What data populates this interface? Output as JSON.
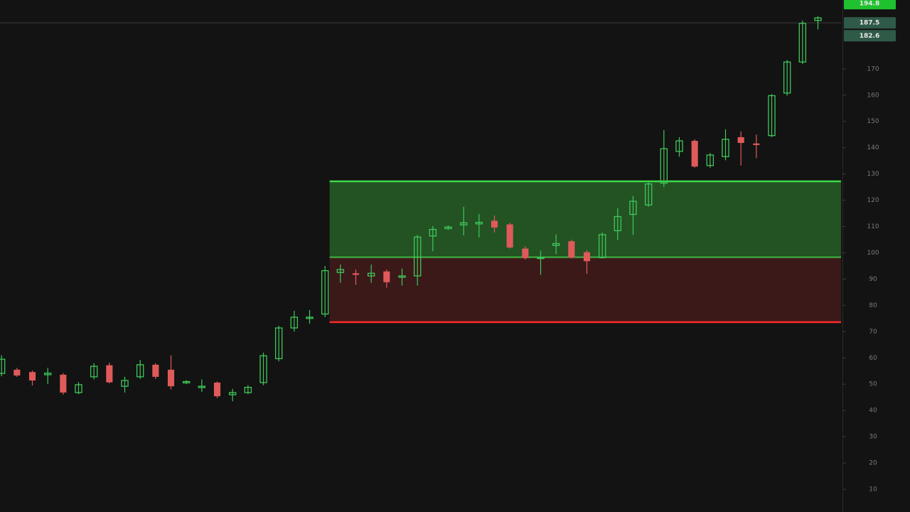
{
  "chart_data": {
    "type": "candlestick",
    "x": [
      0,
      1,
      2,
      3,
      4,
      5,
      6,
      7,
      8,
      9,
      10,
      11,
      12,
      13,
      14,
      15,
      16,
      17,
      18,
      19,
      20,
      21,
      22,
      23,
      24,
      25,
      26,
      27,
      28,
      29,
      30,
      31,
      32,
      33,
      34,
      35,
      36,
      37,
      38,
      39,
      40,
      41,
      42,
      43,
      44,
      45,
      46,
      47,
      48,
      49,
      50,
      51,
      52,
      53
    ],
    "open": [
      54.1,
      55.5,
      54.6,
      53.6,
      53.6,
      46.8,
      52.8,
      57.2,
      49.2,
      52.8,
      57.4,
      55.5,
      50.5,
      48.7,
      50.6,
      46,
      46.8,
      50.6,
      59.7,
      71.4,
      75,
      76.7,
      92.5,
      92.2,
      91.2,
      92.9,
      90.7,
      91.2,
      106.4,
      109.2,
      110.6,
      111,
      112.2,
      110.8,
      101.6,
      97.8,
      102.8,
      104.4,
      100.2,
      98.2,
      108.4,
      114.6,
      118.2,
      126.5,
      138.6,
      142.6,
      133.2,
      136.6,
      144,
      141.6,
      144.6,
      160.8,
      172.6,
      188.4
    ],
    "high": [
      61,
      56.2,
      55.2,
      56.2,
      54.2,
      50.8,
      58,
      58.2,
      52.8,
      59.2,
      58,
      61,
      51.5,
      51.8,
      51,
      48.2,
      49.6,
      62,
      72.2,
      77.9,
      78.2,
      95,
      95.5,
      93.6,
      95.5,
      93.6,
      94,
      106.8,
      110.2,
      110.4,
      117.5,
      114.8,
      114.2,
      111.4,
      102.5,
      100.8,
      107,
      105,
      101,
      107.7,
      117,
      121.6,
      127.5,
      146.7,
      144,
      143.2,
      138,
      147,
      146.2,
      145,
      160.4,
      173.4,
      188.4,
      190
    ],
    "low": [
      53,
      52.8,
      49.5,
      50.1,
      46,
      46.2,
      51.8,
      50.3,
      46.8,
      52,
      52,
      48,
      50,
      47,
      44.7,
      43.5,
      46.2,
      49.6,
      58.7,
      70,
      73,
      75.5,
      88.6,
      87.8,
      88.6,
      86.7,
      87.5,
      87.5,
      100.6,
      108.8,
      106.6,
      105.8,
      107.7,
      101.6,
      97.4,
      91.6,
      99.5,
      97.8,
      92,
      97.8,
      104.8,
      106.8,
      117.5,
      125,
      136.6,
      132.4,
      132.4,
      135.2,
      133.2,
      136,
      144,
      159.8,
      171.8,
      185
    ],
    "close": [
      59.5,
      53.3,
      51.4,
      54.2,
      46.8,
      49.8,
      56.8,
      50.7,
      51.4,
      57.4,
      52.8,
      49.2,
      51,
      49.2,
      45.4,
      46.8,
      48.8,
      60.8,
      71.4,
      75.5,
      75.5,
      93.2,
      93.6,
      91.6,
      92.2,
      88.8,
      91.2,
      106,
      108.9,
      109.8,
      111.4,
      111.6,
      109.6,
      102,
      98,
      98.2,
      103.5,
      98.2,
      96.8,
      106.9,
      113.8,
      119.6,
      126.2,
      139.6,
      142.6,
      132.8,
      137.2,
      143.2,
      141.8,
      141,
      159.8,
      172.6,
      187.3,
      189.4
    ],
    "up_color": "#3fc85a",
    "down_color": "#e05a5a",
    "xlim": [
      -0.1,
      54.5
    ],
    "ylim": [
      1.35,
      196.2
    ],
    "yticks": [
      10,
      20,
      30,
      40,
      50,
      60,
      70,
      80,
      90,
      100,
      110,
      120,
      130,
      140,
      150,
      160,
      170
    ],
    "zones": [
      {
        "x_start": 21.3,
        "top": 127.2,
        "bottom": 98.2,
        "color": "#2a6a2a",
        "line_color": "#3ddc4a"
      },
      {
        "x_start": 21.3,
        "top": 98.2,
        "bottom": 73.6,
        "color": "#4a1c1c",
        "line_color": "#ff2a2a"
      }
    ],
    "price_line": 187.5,
    "price_tags": [
      {
        "value": 194.8,
        "color": "#1fc12f"
      },
      {
        "value": 187.5,
        "color": "#2f5a48"
      },
      {
        "value": 182.6,
        "color": "#2f5a48"
      }
    ]
  }
}
